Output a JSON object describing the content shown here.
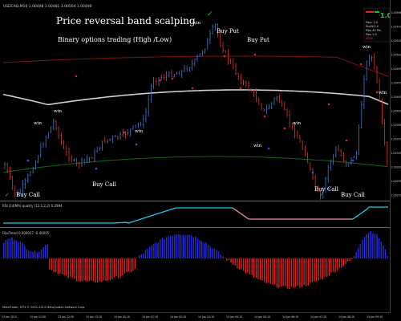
{
  "window": {
    "symbol_header": "USDCAD,M10  1.00498 1.00481 1.00504 1.00490"
  },
  "overlay": {
    "title": "Price reversal band scalping",
    "subtitle": "Binary options trading (High /Low)"
  },
  "annotations": {
    "labels": [
      {
        "text": "Buy Put",
        "kind": "put"
      },
      {
        "text": "Buy Put",
        "kind": "put"
      },
      {
        "text": "Buy Call",
        "kind": "call"
      },
      {
        "text": "Buy Call",
        "kind": "call"
      },
      {
        "text": "Buy Call",
        "kind": "call"
      },
      {
        "text": "Buy Call",
        "kind": "call"
      }
    ],
    "wins": [
      "win",
      "win",
      "win",
      "win",
      "win",
      "win",
      "win",
      "win"
    ]
  },
  "indicator1": {
    "header": "RSI (14/MA) quality (12,1,2,2) 0.2994"
  },
  "indicator2": {
    "header": "FibsTrend 0.000027 -0.00005"
  },
  "footer": {
    "copyright": "MetaTrader, MT4 © 2001-2014 MetaQuotes Software Corp."
  },
  "dashboard": {
    "big_value": "1.0",
    "rows": [
      "Pips: 1.0",
      "Profit/1.0",
      "Pips 40 Pts",
      "Pips 1.0",
      "MCW"
    ]
  },
  "price_axis": [
    "1.00596",
    "1.00570",
    "1.00545",
    "1.00520",
    "1.00495",
    "1.00470",
    "1.00445",
    "1.00420",
    "1.00395",
    "1.00370",
    "1.00345",
    "1.00320",
    "1.00295",
    "1.00270"
  ],
  "time_axis": [
    "13 Jan 2015",
    "13 Jan 21:50",
    "13 Jan 22:30",
    "13 Jan 23:10",
    "14 Jan 00:10",
    "14 Jan 01:10",
    "14 Jan 02:10",
    "14 Jan 03:10",
    "14 Jan 04:10",
    "14 Jan 05:10",
    "14 Jan 06:10",
    "14 Jan 07:10",
    "14 Jan 08:10",
    "14 Jan 09:10"
  ],
  "colors": {
    "bull": "#3a78d8",
    "bear": "#e03030",
    "upper_band": "#7a1414",
    "lower_band": "#0e6a16",
    "mid": "#d0d0d0",
    "rsi_up": "#20c8f0",
    "rsi_dn": "#f08aa0",
    "hist_pos": "#2828e8",
    "hist_neg": "#e02020"
  }
}
